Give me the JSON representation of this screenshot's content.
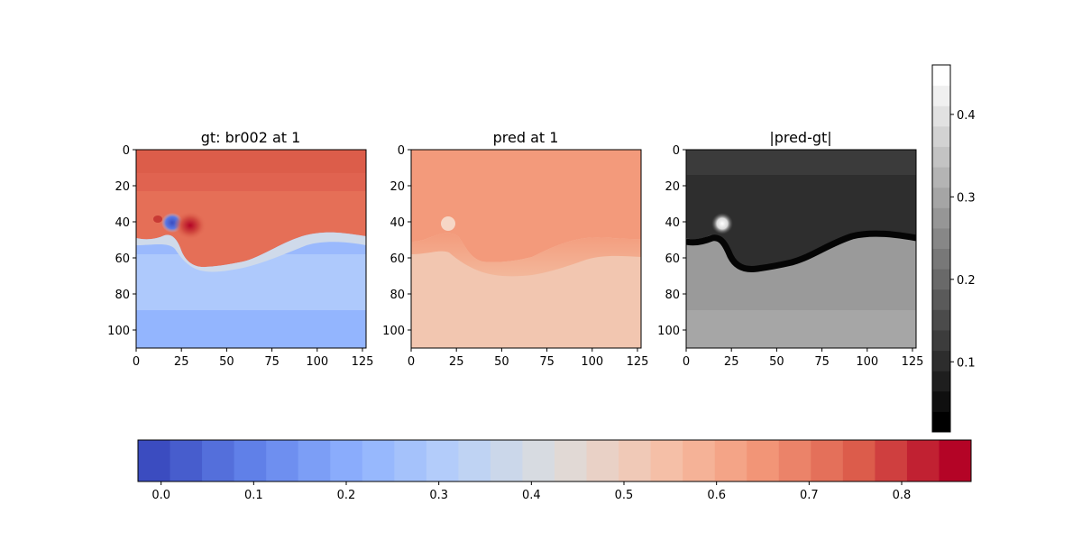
{
  "chart_data": [
    {
      "type": "heatmap",
      "title": "gt: br002 at 1",
      "colormap": "coolwarm",
      "xticks": [
        "0",
        "25",
        "50",
        "75",
        "100",
        "125"
      ],
      "yticks": [
        "0",
        "20",
        "40",
        "60",
        "80",
        "100"
      ],
      "xlim": [
        0,
        127
      ],
      "ylim": [
        110,
        0
      ],
      "regions": [
        {
          "label": "top band",
          "rows": [
            0,
            10
          ],
          "value": 0.76
        },
        {
          "label": "upper field",
          "rows": [
            10,
            40
          ],
          "value": 0.72
        },
        {
          "label": "interface vortex at x~20, y~40",
          "value": 0.0
        },
        {
          "label": "interface red peak at x~30, y~42",
          "value": 0.84
        },
        {
          "label": "light band below interface",
          "rows": [
            50,
            62
          ],
          "value": 0.3
        },
        {
          "label": "lower field",
          "rows": [
            62,
            85
          ],
          "value": 0.25
        },
        {
          "label": "bottom field",
          "rows": [
            85,
            110
          ],
          "value": 0.2
        }
      ]
    },
    {
      "type": "heatmap",
      "title": "pred at 1",
      "colormap": "coolwarm",
      "xticks": [
        "0",
        "25",
        "50",
        "75",
        "100",
        "125"
      ],
      "yticks": [
        "0",
        "20",
        "40",
        "60",
        "80",
        "100"
      ],
      "xlim": [
        0,
        127
      ],
      "ylim": [
        110,
        0
      ],
      "regions": [
        {
          "label": "upper field",
          "rows": [
            0,
            45
          ],
          "value": 0.62
        },
        {
          "label": "transition",
          "rows": [
            45,
            62
          ],
          "value": 0.57
        },
        {
          "label": "lower field",
          "rows": [
            62,
            110
          ],
          "value": 0.54
        }
      ]
    },
    {
      "type": "heatmap",
      "title": "|pred-gt|",
      "colormap": "gray",
      "xticks": [
        "0",
        "25",
        "50",
        "75",
        "100",
        "125"
      ],
      "yticks": [
        "0",
        "20",
        "40",
        "60",
        "80",
        "100"
      ],
      "xlim": [
        0,
        127
      ],
      "ylim": [
        110,
        0
      ],
      "regions": [
        {
          "label": "upper field",
          "rows": [
            0,
            40
          ],
          "value": 0.1
        },
        {
          "label": "interface",
          "rows": [
            45,
            60
          ],
          "value": 0.02
        },
        {
          "label": "bright spot at x~20, y~40",
          "value": 0.45
        },
        {
          "label": "lower field",
          "rows": [
            62,
            110
          ],
          "value": 0.3
        }
      ]
    },
    {
      "type": "colorbar",
      "colormap": "gray",
      "orientation": "vertical",
      "range": [
        0.015,
        0.46
      ],
      "ticks": [
        "0.1",
        "0.2",
        "0.3",
        "0.4"
      ],
      "tick_values": [
        0.1,
        0.2,
        0.3,
        0.4
      ]
    },
    {
      "type": "colorbar",
      "colormap": "coolwarm",
      "orientation": "horizontal",
      "range": [
        -0.025,
        0.875
      ],
      "ticks": [
        "0.0",
        "0.1",
        "0.2",
        "0.3",
        "0.4",
        "0.5",
        "0.6",
        "0.7",
        "0.8"
      ],
      "tick_values": [
        0.0,
        0.1,
        0.2,
        0.3,
        0.4,
        0.5,
        0.6,
        0.7,
        0.8
      ]
    }
  ]
}
